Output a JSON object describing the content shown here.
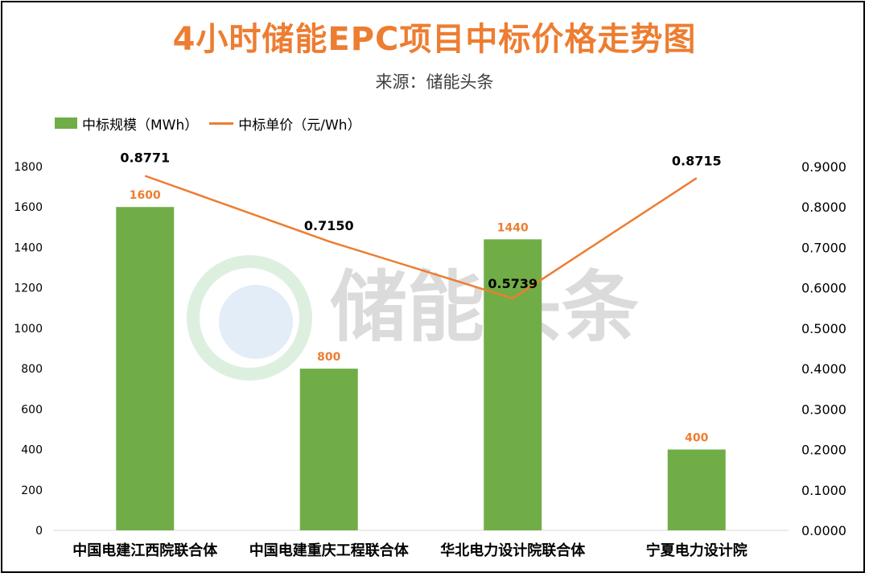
{
  "chart_data": {
    "type": "bar",
    "title": "4小时储能EPC项目中标价格走势图",
    "subtitle": "来源：储能头条",
    "watermark": "储能头条",
    "categories": [
      "中国电建江西院联合体",
      "中国电建重庆工程联合体",
      "华北电力设计院联合体",
      "宁夏电力设计院"
    ],
    "series": [
      {
        "name": "中标规模（MWh）",
        "type": "bar",
        "axis": "left",
        "color": "#70AD47",
        "values": [
          1600,
          800,
          1440,
          400
        ],
        "labels": [
          "1600",
          "800",
          "1440",
          "400"
        ]
      },
      {
        "name": "中标单价（元/Wh）",
        "type": "line",
        "axis": "right",
        "color": "#ED7D31",
        "values": [
          0.8771,
          0.715,
          0.5739,
          0.8715
        ],
        "labels": [
          "0.8771",
          "0.7150",
          "0.5739",
          "0.8715"
        ]
      }
    ],
    "left_axis": {
      "ylim": [
        0,
        1800
      ],
      "ticks": [
        "0",
        "200",
        "400",
        "600",
        "800",
        "1000",
        "1200",
        "1400",
        "1600",
        "1800"
      ]
    },
    "right_axis": {
      "ylim": [
        0,
        0.9
      ],
      "ticks": [
        "0.0000",
        "0.1000",
        "0.2000",
        "0.3000",
        "0.4000",
        "0.5000",
        "0.6000",
        "0.7000",
        "0.8000",
        "0.9000"
      ]
    },
    "grid": false,
    "legend": "top-left",
    "colors": {
      "bar": "#70AD47",
      "line": "#ED7D31",
      "title": "#ED7D31",
      "bar_label": "#ED7D31",
      "line_label": "#000000"
    }
  }
}
